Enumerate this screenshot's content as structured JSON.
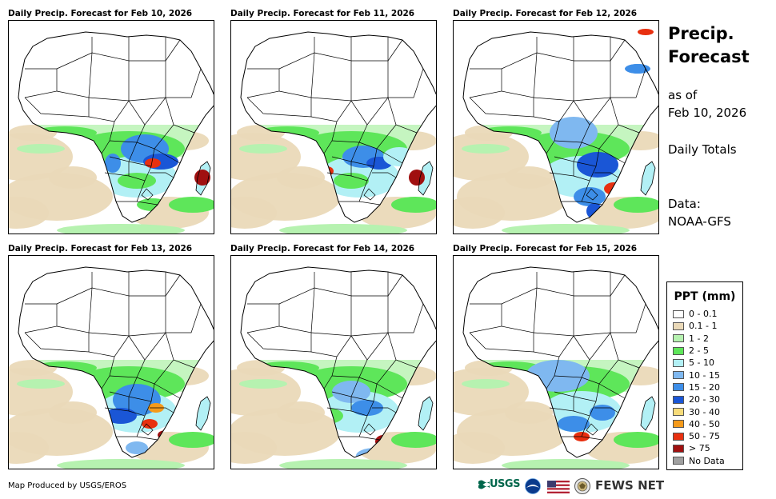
{
  "panels": [
    {
      "title": "Daily Precip. Forecast for Feb 10, 2026"
    },
    {
      "title": "Daily Precip. Forecast for Feb 11, 2026"
    },
    {
      "title": "Daily Precip. Forecast for Feb 12, 2026"
    },
    {
      "title": "Daily Precip. Forecast for Feb 13, 2026"
    },
    {
      "title": "Daily Precip. Forecast for Feb 14, 2026"
    },
    {
      "title": "Daily Precip. Forecast for Feb 15, 2026"
    }
  ],
  "sidebar": {
    "title_line1": "Precip.",
    "title_line2": "Forecast",
    "as_of_label": "as of",
    "as_of_date": "Feb 10, 2026",
    "totals_label": "Daily Totals",
    "data_label": "Data:",
    "data_source": "NOAA-GFS"
  },
  "legend": {
    "title": "PPT (mm)",
    "items": [
      {
        "label": "0 - 0.1",
        "color": "#ffffff"
      },
      {
        "label": "0.1 - 1",
        "color": "#ead9b8"
      },
      {
        "label": "1 - 2",
        "color": "#b6f2b0"
      },
      {
        "label": "2 - 5",
        "color": "#5ee65a"
      },
      {
        "label": "5 - 10",
        "color": "#b2f0f5"
      },
      {
        "label": "10 - 15",
        "color": "#7fb8f0"
      },
      {
        "label": "15 - 20",
        "color": "#3d8ee8"
      },
      {
        "label": "20 - 30",
        "color": "#1a56d6"
      },
      {
        "label": "30 - 40",
        "color": "#f7dc7a"
      },
      {
        "label": "40 - 50",
        "color": "#f59a1a"
      },
      {
        "label": "50 - 75",
        "color": "#e83010"
      },
      {
        "label": "> 75",
        "color": "#a01010"
      },
      {
        "label": "No Data",
        "color": "#a0a0a0"
      }
    ]
  },
  "footer": {
    "credit": "Map Produced by USGS/EROS",
    "usgs_logo": "USGS",
    "fews_logo": "FEWS NET"
  }
}
